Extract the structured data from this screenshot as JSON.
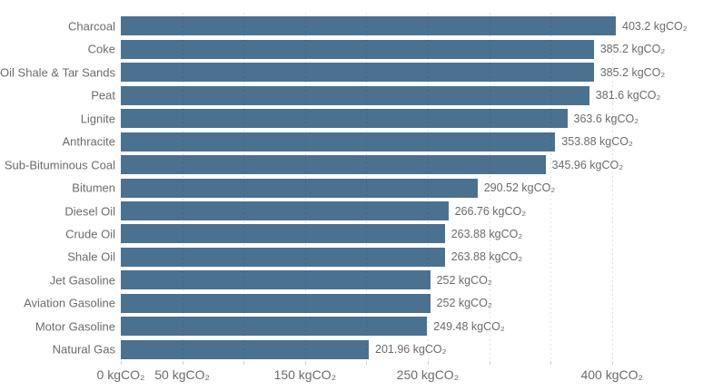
{
  "chart_data": {
    "type": "bar",
    "orientation": "horizontal",
    "title": "",
    "xlabel": "",
    "ylabel": "",
    "unit": "kgCO₂",
    "categories": [
      "Charcoal",
      "Coke",
      "Oil Shale & Tar Sands",
      "Peat",
      "Lignite",
      "Anthracite",
      "Sub-Bituminous Coal",
      "Bitumen",
      "Diesel Oil",
      "Crude Oil",
      "Shale Oil",
      "Jet Gasoline",
      "Aviation Gasoline",
      "Motor Gasoline",
      "Natural Gas"
    ],
    "values": [
      403.2,
      385.2,
      385.2,
      381.6,
      363.6,
      353.88,
      345.96,
      290.52,
      266.76,
      263.88,
      263.88,
      252,
      252,
      249.48,
      201.96
    ],
    "value_labels": [
      "403.2 kgCO₂",
      "385.2 kgCO₂",
      "385.2 kgCO₂",
      "381.6 kgCO₂",
      "363.6 kgCO₂",
      "353.88 kgCO₂",
      "345.96 kgCO₂",
      "290.52 kgCO₂",
      "266.76 kgCO₂",
      "263.88 kgCO₂",
      "263.88 kgCO₂",
      "252 kgCO₂",
      "252 kgCO₂",
      "249.48 kgCO₂",
      "201.96 kgCO₂"
    ],
    "x_ticks": [
      {
        "value": 0,
        "label": "0 kgCO₂"
      },
      {
        "value": 50,
        "label": "50 kgCO₂"
      },
      {
        "value": 150,
        "label": "150 kgCO₂"
      },
      {
        "value": 250,
        "label": "250 kgCO₂"
      },
      {
        "value": 400,
        "label": "400 kgCO₂"
      }
    ],
    "gridline_values": [
      50,
      100,
      150,
      200,
      250,
      300,
      350,
      400
    ],
    "xlim": [
      0,
      450
    ],
    "grid": true,
    "legend_position": "none",
    "bar_color": "#4b7191",
    "label_color": "#6b6b6b",
    "gridline_color": "#e2e2e2",
    "background_color": "#ffffff"
  }
}
